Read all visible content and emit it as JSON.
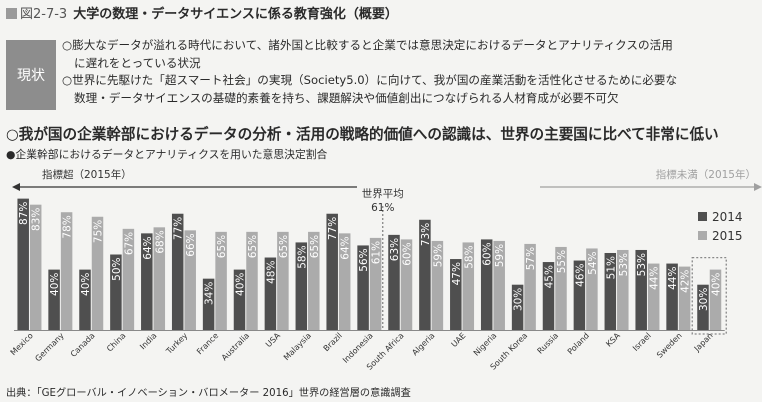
{
  "figure": {
    "number": "図2-7-3",
    "title": "大学の数理・データサイエンスに係る教育強化（概要）"
  },
  "status": {
    "label": "現状",
    "lines": [
      "○膨大なデータが溢れる時代において、諸外国と比較すると企業では意思決定におけるデータとアナリティクスの活用",
      "に遅れをとっている状況",
      "○世界に先駆けた「超スマート社会」の実現（Society5.0）に向けて、我が国の産業活動を活性化させるために必要な",
      "数理・データサイエンスの基礎的素養を持ち、課題解決や価値創出につなげられる人材育成が必要不可欠"
    ]
  },
  "headline": "○我が国の企業幹部におけるデータの分析・活用の戦略的価値への認識は、世界の主要国に比べて非常に低い",
  "subhead": "●企業幹部におけるデータとアナリティクスを用いた意思決定割合",
  "source": "出典：「GEグローバル・イノベーション・バロメーター 2016」世界の経営層の意識調査",
  "colors": {
    "series_2014": "#4f4f4f",
    "series_2015": "#ababab",
    "above_arrow": "#333333",
    "below_arrow": "#a0a0a0",
    "background": "#f4f4f2"
  },
  "chart_data": {
    "type": "bar",
    "categories": [
      "Mexico",
      "Germany",
      "Canada",
      "China",
      "India",
      "Turkey",
      "France",
      "Australia",
      "USA",
      "Malaysia",
      "Brazil",
      "Indonesia",
      "South Africa",
      "Algeria",
      "UAE",
      "Nigeria",
      "South Korea",
      "Russia",
      "Poland",
      "KSA",
      "Israel",
      "Sweden",
      "Japan"
    ],
    "series": [
      {
        "name": "2014",
        "values": [
          87,
          40,
          40,
          50,
          64,
          77,
          34,
          40,
          48,
          58,
          77,
          56,
          63,
          73,
          47,
          60,
          30,
          45,
          46,
          51,
          53,
          44,
          30
        ]
      },
      {
        "name": "2015",
        "values": [
          83,
          78,
          75,
          67,
          68,
          66,
          65,
          65,
          65,
          65,
          64,
          61,
          60,
          59,
          58,
          59,
          57,
          55,
          54,
          53,
          44,
          42,
          40
        ]
      }
    ],
    "percent_suffix": "%",
    "ylim": [
      0,
      100
    ],
    "legend_position": "right",
    "reference_line": {
      "value": 61,
      "label_line1": "世界平均",
      "label_line2": "61%"
    },
    "above_label": "指標超（2015年）",
    "below_label": "指標未満（2015年）",
    "highlighted_category": "Japan"
  }
}
